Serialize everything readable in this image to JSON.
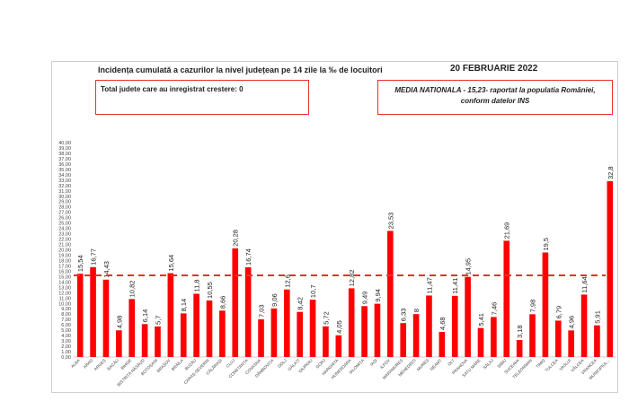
{
  "chart_data": {
    "type": "bar",
    "title": "Incidența cumulată a cazurilor la nivel județean pe 14 zile la ‰ de locuitori",
    "date": "20 FEBRUARIE 2022",
    "note_left": "Total judete care au inregistrat crestere: 0",
    "note_right": "MEDIA NATIONALA - 15,23-  raportat la populatia României, conform datelor INS",
    "reference_line": {
      "value": 15.23,
      "style": "dashed",
      "color": "#e8302a"
    },
    "bar_color": "#ff0000",
    "ylim": [
      0,
      40
    ],
    "y_step": 1,
    "grid": false,
    "categories": [
      "ALBA",
      "ARAD",
      "ARGEȘ",
      "BACĂU",
      "BIHOR",
      "BISTRIȚA NĂSĂUD",
      "BOTOȘANI",
      "BRAȘOV",
      "BRĂILA",
      "BUZĂU",
      "CARAȘ-SEVERIN",
      "CĂLĂRAȘI",
      "CLUJ",
      "CONSTANȚA",
      "COVASNA",
      "DÂMBOVIȚA",
      "DOLJ",
      "GALAȚI",
      "GIURGIU",
      "GORJ",
      "HARGHITA",
      "HUNEDOARA",
      "IALOMIȚA",
      "IAȘI",
      "ILFOV",
      "MARAMUREȘ",
      "MEHEDINȚI",
      "MUREȘ",
      "NEAMȚ",
      "OLT",
      "PRAHOVA",
      "SATU MARE",
      "SĂLAJ",
      "SIBIU",
      "SUCEAVA",
      "TELEORMAN",
      "TIMIȘ",
      "TULCEA",
      "VASLUI",
      "VÂLCEA",
      "VRANCEA",
      "MUNICIPIUL..."
    ],
    "values": [
      15.54,
      16.77,
      14.43,
      4.98,
      10.82,
      6.14,
      5.7,
      15.64,
      8.14,
      11.8,
      10.55,
      8.66,
      20.28,
      16.74,
      7.03,
      9.06,
      12.6,
      8.42,
      10.7,
      5.72,
      4.05,
      12.82,
      9.49,
      9.94,
      23.53,
      6.33,
      8,
      11.47,
      4.68,
      11.41,
      14.95,
      5.41,
      7.46,
      21.69,
      3.18,
      7.98,
      19.5,
      6.79,
      4.96,
      11.64,
      5.91,
      32.8
    ],
    "labels": [
      "15,54",
      "16,77",
      "14,43",
      "4,98",
      "10,82",
      "6,14",
      "5,7",
      "15,64",
      "8,14",
      "11,8",
      "10,55",
      "8,66",
      "20,28",
      "16,74",
      "7,03",
      "9,06",
      "12,6",
      "8,42",
      "10,7",
      "5,72",
      "4,05",
      "12,82",
      "9,49",
      "9,94",
      "23,53",
      "6,33",
      "8",
      "11,47",
      "4,68",
      "11,41",
      "14,95",
      "5,41",
      "7,46",
      "21,69",
      "3,18",
      "7,98",
      "19,5",
      "6,79",
      "4,96",
      "11,64",
      "5,91",
      "32,8"
    ]
  }
}
